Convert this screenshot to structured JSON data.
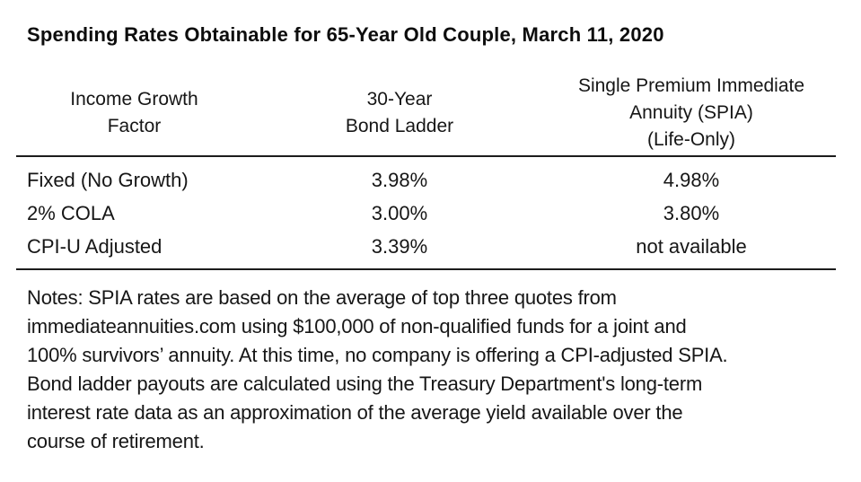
{
  "title": "Spending Rates Obtainable for 65-Year Old Couple, March 11, 2020",
  "table": {
    "columns": [
      {
        "header_lines": [
          "Income Growth",
          "Factor"
        ]
      },
      {
        "header_lines": [
          "30-Year",
          "Bond Ladder"
        ]
      },
      {
        "header_lines": [
          "Single Premium Immediate",
          "Annuity (SPIA)",
          "(Life-Only)"
        ]
      }
    ],
    "rows": [
      {
        "factor": "Fixed (No Growth)",
        "bond_ladder": "3.98%",
        "spia": "4.98%"
      },
      {
        "factor": "2% COLA",
        "bond_ladder": "3.00%",
        "spia": "3.80%"
      },
      {
        "factor": "CPI-U Adjusted",
        "bond_ladder": "3.39%",
        "spia": "not available"
      }
    ]
  },
  "notes_lines": [
    "Notes: SPIA rates are based on the average of top three quotes from",
    "immediateannuities.com using $100,000 of non-qualified funds for a joint and",
    "100% survivors’ annuity. At this time, no company is offering a CPI-adjusted SPIA.",
    "Bond ladder payouts are calculated using the Treasury Department's long-term",
    "interest rate data as an approximation of the average yield available over the",
    "course of retirement."
  ],
  "colors": {
    "background": "#ffffff",
    "text": "#161616",
    "rule": "#1c1c1c"
  }
}
